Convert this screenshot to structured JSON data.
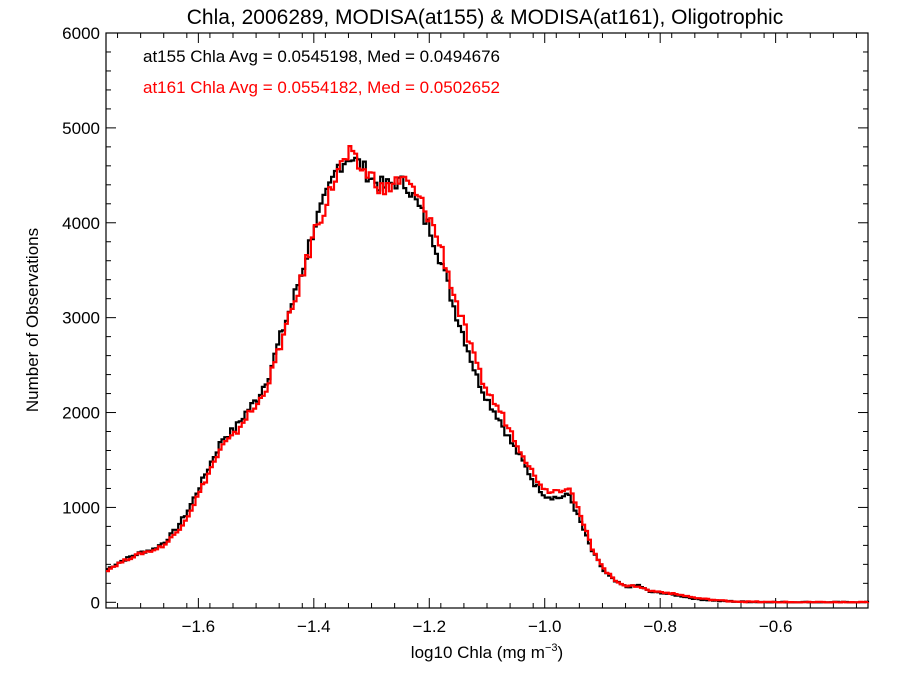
{
  "chart_data": {
    "type": "line",
    "title": "Chla, 2006289, MODISA(at155) & MODISA(at161), Oligotrophic",
    "xlabel_main": "log10 Chla (mg m",
    "xlabel_sup": "−3",
    "xlabel_close": ")",
    "ylabel": "Number of Observations",
    "xlim": [
      -1.76,
      -0.44
    ],
    "ylim": [
      -60,
      6000
    ],
    "x_ticks": [
      -1.6,
      -1.4,
      -1.2,
      -1.0,
      -0.8,
      -0.6
    ],
    "x_tick_labels": [
      "−1.6",
      "−1.4",
      "−1.2",
      "−1.0",
      "−0.8",
      "−0.6"
    ],
    "y_ticks": [
      0,
      1000,
      2000,
      3000,
      4000,
      5000,
      6000
    ],
    "y_tick_labels": [
      "0",
      "1000",
      "2000",
      "3000",
      "4000",
      "5000",
      "6000"
    ],
    "grid": false,
    "step": true,
    "annotations": [
      {
        "text": "at155 Chla Avg = 0.0545198, Med = 0.0494676",
        "color": "#000000"
      },
      {
        "text": "at161 Chla Avg = 0.0554182, Med = 0.0502652",
        "color": "#ff0000"
      }
    ],
    "series": [
      {
        "color": "#000000",
        "points": [
          [
            -1.76,
            350
          ],
          [
            -1.74,
            420
          ],
          [
            -1.72,
            480
          ],
          [
            -1.7,
            530
          ],
          [
            -1.68,
            560
          ],
          [
            -1.66,
            640
          ],
          [
            -1.64,
            780
          ],
          [
            -1.62,
            970
          ],
          [
            -1.6,
            1220
          ],
          [
            -1.58,
            1480
          ],
          [
            -1.56,
            1730
          ],
          [
            -1.54,
            1820
          ],
          [
            -1.52,
            2000
          ],
          [
            -1.5,
            2150
          ],
          [
            -1.48,
            2400
          ],
          [
            -1.46,
            2800
          ],
          [
            -1.44,
            3150
          ],
          [
            -1.42,
            3550
          ],
          [
            -1.4,
            4000
          ],
          [
            -1.38,
            4280
          ],
          [
            -1.36,
            4600
          ],
          [
            -1.34,
            4700
          ],
          [
            -1.32,
            4600
          ],
          [
            -1.3,
            4450
          ],
          [
            -1.28,
            4380
          ],
          [
            -1.26,
            4430
          ],
          [
            -1.24,
            4400
          ],
          [
            -1.22,
            4150
          ],
          [
            -1.2,
            3920
          ],
          [
            -1.18,
            3560
          ],
          [
            -1.16,
            3120
          ],
          [
            -1.14,
            2760
          ],
          [
            -1.12,
            2370
          ],
          [
            -1.1,
            2120
          ],
          [
            -1.08,
            1920
          ],
          [
            -1.06,
            1680
          ],
          [
            -1.04,
            1480
          ],
          [
            -1.02,
            1250
          ],
          [
            -1.0,
            1120
          ],
          [
            -0.98,
            1100
          ],
          [
            -0.96,
            1130
          ],
          [
            -0.94,
            840
          ],
          [
            -0.92,
            540
          ],
          [
            -0.9,
            330
          ],
          [
            -0.88,
            220
          ],
          [
            -0.86,
            160
          ],
          [
            -0.84,
            180
          ],
          [
            -0.82,
            110
          ],
          [
            -0.8,
            100
          ],
          [
            -0.78,
            80
          ],
          [
            -0.76,
            60
          ],
          [
            -0.74,
            35
          ],
          [
            -0.72,
            25
          ],
          [
            -0.7,
            15
          ],
          [
            -0.68,
            10
          ],
          [
            -0.66,
            6
          ],
          [
            -0.64,
            4
          ],
          [
            -0.62,
            3
          ],
          [
            -0.6,
            2
          ],
          [
            -0.56,
            1
          ],
          [
            -0.5,
            0
          ],
          [
            -0.44,
            0
          ]
        ]
      },
      {
        "color": "#ff0000",
        "points": [
          [
            -1.76,
            340
          ],
          [
            -1.74,
            410
          ],
          [
            -1.72,
            470
          ],
          [
            -1.7,
            520
          ],
          [
            -1.68,
            550
          ],
          [
            -1.66,
            610
          ],
          [
            -1.64,
            740
          ],
          [
            -1.62,
            920
          ],
          [
            -1.6,
            1160
          ],
          [
            -1.58,
            1420
          ],
          [
            -1.56,
            1650
          ],
          [
            -1.54,
            1760
          ],
          [
            -1.52,
            1950
          ],
          [
            -1.5,
            2080
          ],
          [
            -1.48,
            2330
          ],
          [
            -1.46,
            2720
          ],
          [
            -1.44,
            3080
          ],
          [
            -1.42,
            3480
          ],
          [
            -1.4,
            3930
          ],
          [
            -1.38,
            4220
          ],
          [
            -1.36,
            4560
          ],
          [
            -1.34,
            4720
          ],
          [
            -1.32,
            4560
          ],
          [
            -1.3,
            4480
          ],
          [
            -1.28,
            4320
          ],
          [
            -1.26,
            4450
          ],
          [
            -1.24,
            4420
          ],
          [
            -1.22,
            4250
          ],
          [
            -1.2,
            4030
          ],
          [
            -1.18,
            3700
          ],
          [
            -1.16,
            3250
          ],
          [
            -1.14,
            2870
          ],
          [
            -1.12,
            2480
          ],
          [
            -1.1,
            2200
          ],
          [
            -1.08,
            2020
          ],
          [
            -1.06,
            1790
          ],
          [
            -1.04,
            1560
          ],
          [
            -1.02,
            1330
          ],
          [
            -1.0,
            1180
          ],
          [
            -0.98,
            1180
          ],
          [
            -0.96,
            1220
          ],
          [
            -0.94,
            900
          ],
          [
            -0.92,
            570
          ],
          [
            -0.9,
            350
          ],
          [
            -0.88,
            230
          ],
          [
            -0.86,
            170
          ],
          [
            -0.84,
            170
          ],
          [
            -0.82,
            120
          ],
          [
            -0.8,
            110
          ],
          [
            -0.78,
            90
          ],
          [
            -0.76,
            70
          ],
          [
            -0.74,
            45
          ],
          [
            -0.72,
            32
          ],
          [
            -0.7,
            20
          ],
          [
            -0.68,
            12
          ],
          [
            -0.66,
            7
          ],
          [
            -0.64,
            5
          ],
          [
            -0.62,
            3
          ],
          [
            -0.6,
            2
          ],
          [
            -0.56,
            1
          ],
          [
            -0.5,
            0
          ],
          [
            -0.44,
            0
          ]
        ]
      }
    ]
  }
}
